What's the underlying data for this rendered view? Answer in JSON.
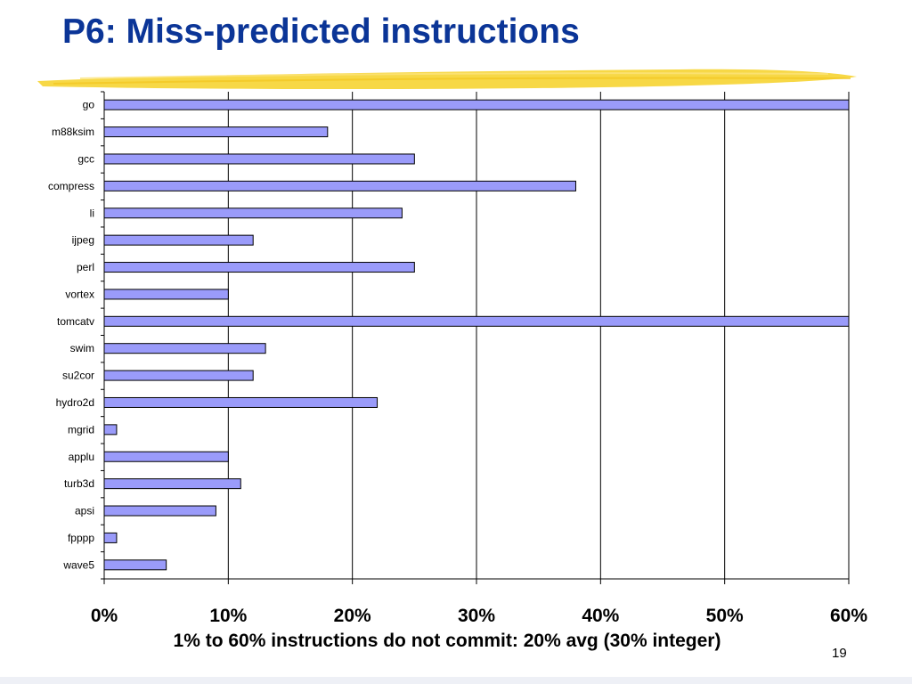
{
  "slide": {
    "title": "P6: Miss-predicted instructions",
    "footer": "1% to 60% instructions do not commit: 20% avg (30% integer)",
    "page_number": "19"
  },
  "colors": {
    "title": "#0b3597",
    "bar_fill": "#9a9bfa",
    "bar_stroke": "#000000",
    "highlight": "#f7d63c"
  },
  "chart_data": {
    "type": "bar",
    "orientation": "horizontal",
    "categories": [
      "go",
      "m88ksim",
      "gcc",
      "compress",
      "li",
      "ijpeg",
      "perl",
      "vortex",
      "tomcatv",
      "swim",
      "su2cor",
      "hydro2d",
      "mgrid",
      "applu",
      "turb3d",
      "apsi",
      "fpppp",
      "wave5"
    ],
    "values": [
      60,
      18,
      25,
      38,
      24,
      12,
      25,
      10,
      60,
      13,
      12,
      22,
      1,
      10,
      11,
      9,
      1,
      5
    ],
    "x_ticks": [
      "0%",
      "10%",
      "20%",
      "30%",
      "40%",
      "50%",
      "60%"
    ],
    "xlim": [
      0,
      60
    ],
    "value_unit": "%",
    "grid": "vertical",
    "legend": "none"
  }
}
